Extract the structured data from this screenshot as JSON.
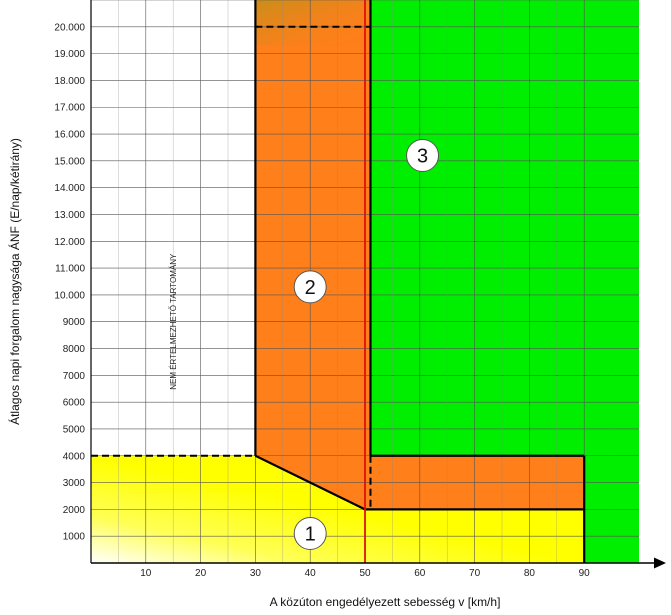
{
  "chart_data": {
    "type": "area",
    "xlabel": "A közúton engedélyezett sebesség v [km/h]",
    "ylabel": "Átlagos napi forgalom nagysága ÁNF (E/nap/kétirány)",
    "xlim": [
      0,
      100
    ],
    "ylim": [
      0,
      21000
    ],
    "x_ticks": [
      {
        "value": 10,
        "label": "10"
      },
      {
        "value": 20,
        "label": "20"
      },
      {
        "value": 30,
        "label": "30"
      },
      {
        "value": 40,
        "label": "40"
      },
      {
        "value": 50,
        "label": "50"
      },
      {
        "value": 60,
        "label": "60"
      },
      {
        "value": 70,
        "label": "70"
      },
      {
        "value": 80,
        "label": "80"
      },
      {
        "value": 90,
        "label": "90"
      }
    ],
    "y_ticks": [
      {
        "value": 1000,
        "label": "1000"
      },
      {
        "value": 2000,
        "label": "2000"
      },
      {
        "value": 3000,
        "label": "3000"
      },
      {
        "value": 4000,
        "label": "4000"
      },
      {
        "value": 5000,
        "label": "5000"
      },
      {
        "value": 6000,
        "label": "6000"
      },
      {
        "value": 7000,
        "label": "7000"
      },
      {
        "value": 8000,
        "label": "8000"
      },
      {
        "value": 9000,
        "label": "9000"
      },
      {
        "value": 10000,
        "label": "10.000"
      },
      {
        "value": 11000,
        "label": "11.000"
      },
      {
        "value": 12000,
        "label": "12.000"
      },
      {
        "value": 13000,
        "label": "13.000"
      },
      {
        "value": 14000,
        "label": "14.000"
      },
      {
        "value": 15000,
        "label": "15.000"
      },
      {
        "value": 16000,
        "label": "16.000"
      },
      {
        "value": 17000,
        "label": "17.000"
      },
      {
        "value": 18000,
        "label": "18.000"
      },
      {
        "value": 19000,
        "label": "19.000"
      },
      {
        "value": 20000,
        "label": "20.000"
      }
    ],
    "regions": [
      {
        "id": "3",
        "label": "3",
        "color": "#00ee00",
        "points": [
          [
            50,
            21000
          ],
          [
            100,
            21000
          ],
          [
            100,
            0
          ],
          [
            90,
            0
          ],
          [
            90,
            4000
          ],
          [
            50,
            4000
          ]
        ],
        "label_at": [
          60.5,
          15200
        ]
      },
      {
        "id": "2",
        "label": "2",
        "color": "#ff7f1a",
        "points": [
          [
            30,
            21000
          ],
          [
            51,
            21000
          ],
          [
            51,
            4000
          ],
          [
            90,
            4000
          ],
          [
            90,
            2000
          ],
          [
            50,
            2000
          ],
          [
            30,
            4000
          ]
        ],
        "label_at": [
          40,
          10300
        ]
      },
      {
        "id": "1",
        "label": "1",
        "color": "#ffff00",
        "points": [
          [
            0,
            0
          ],
          [
            90,
            0
          ],
          [
            90,
            2000
          ],
          [
            50,
            2000
          ],
          [
            30,
            4000
          ],
          [
            0,
            4000
          ]
        ],
        "label_at": [
          40,
          1100
        ]
      }
    ],
    "unusable_region": {
      "label": "NEM ÉRTELMEZHETŐ TARTOMÁNY",
      "at": [
        15,
        9000
      ]
    },
    "boundaries": {
      "solid": [
        [
          [
            30,
            21000
          ],
          [
            30,
            4000
          ]
        ],
        [
          [
            51,
            21000
          ],
          [
            51,
            4000
          ]
        ],
        [
          [
            51,
            4000
          ],
          [
            90,
            4000
          ]
        ],
        [
          [
            90,
            4000
          ],
          [
            90,
            0
          ]
        ],
        [
          [
            50,
            2000
          ],
          [
            90,
            2000
          ]
        ],
        [
          [
            30,
            4000
          ],
          [
            50,
            2000
          ]
        ]
      ],
      "dashed": [
        [
          [
            0,
            4000
          ],
          [
            30,
            4000
          ]
        ],
        [
          [
            30,
            20000
          ],
          [
            51,
            20000
          ]
        ],
        [
          [
            51,
            4000
          ],
          [
            51,
            2000
          ]
        ]
      ],
      "red": [
        [
          [
            50,
            0
          ],
          [
            50,
            21000
          ]
        ]
      ]
    },
    "grid": true
  }
}
